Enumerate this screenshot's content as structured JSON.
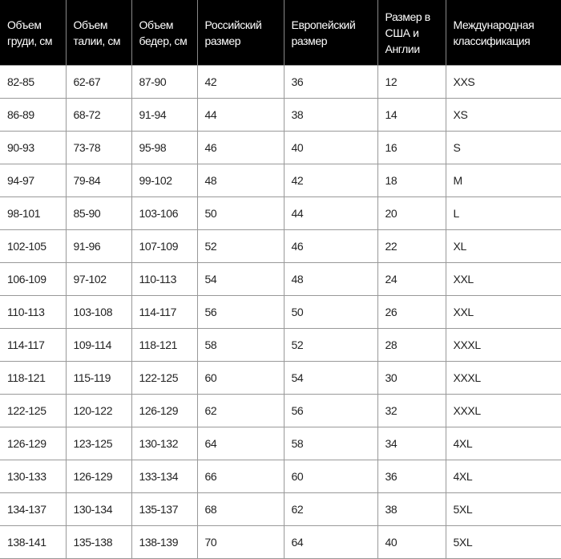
{
  "headers": [
    "Объем груди, см",
    "Объем талии, см",
    "Объем бедер, см",
    "Российский размер",
    "Европейский размер",
    "Размер в США и Англии",
    "Международная классификация"
  ],
  "rows": [
    [
      "82-85",
      "62-67",
      "87-90",
      "42",
      "36",
      "12",
      "XXS"
    ],
    [
      "86-89",
      "68-72",
      "91-94",
      "44",
      "38",
      "14",
      "XS"
    ],
    [
      "90-93",
      "73-78",
      "95-98",
      "46",
      "40",
      "16",
      "S"
    ],
    [
      "94-97",
      "79-84",
      "99-102",
      "48",
      "42",
      "18",
      "M"
    ],
    [
      "98-101",
      "85-90",
      "103-106",
      "50",
      "44",
      "20",
      "L"
    ],
    [
      "102-105",
      "91-96",
      "107-109",
      "52",
      "46",
      "22",
      "XL"
    ],
    [
      "106-109",
      "97-102",
      "110-113",
      "54",
      "48",
      "24",
      "XXL"
    ],
    [
      "110-113",
      "103-108",
      "114-117",
      "56",
      "50",
      "26",
      "XXL"
    ],
    [
      "114-117",
      "109-114",
      "118-121",
      "58",
      "52",
      "28",
      "XXXL"
    ],
    [
      "118-121",
      "115-119",
      "122-125",
      "60",
      "54",
      "30",
      "XXXL"
    ],
    [
      "122-125",
      "120-122",
      "126-129",
      "62",
      "56",
      "32",
      "XXXL"
    ],
    [
      "126-129",
      "123-125",
      "130-132",
      "64",
      "58",
      "34",
      "4XL"
    ],
    [
      "130-133",
      "126-129",
      "133-134",
      "66",
      "60",
      "36",
      "4XL"
    ],
    [
      "134-137",
      "130-134",
      "135-137",
      "68",
      "62",
      "38",
      "5XL"
    ],
    [
      "138-141",
      "135-138",
      "138-139",
      "70",
      "64",
      "40",
      "5XL"
    ]
  ]
}
